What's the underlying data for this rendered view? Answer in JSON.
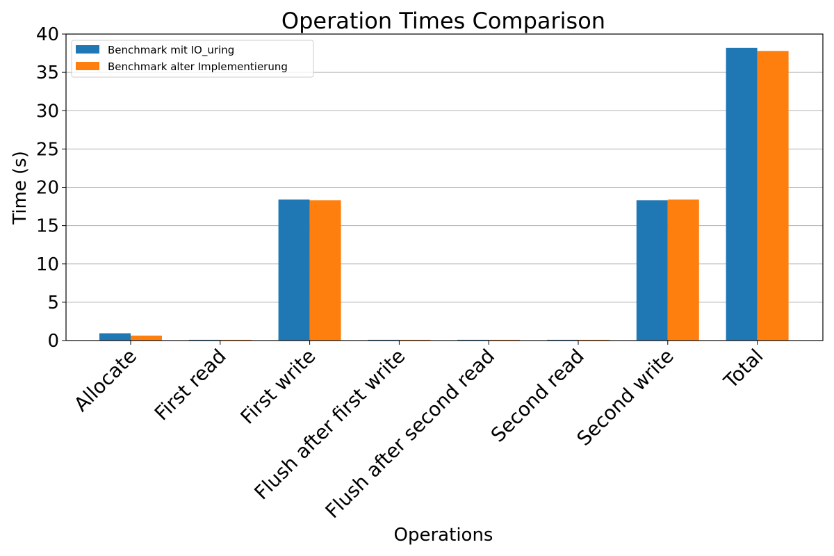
{
  "chart_data": {
    "type": "bar",
    "title": "Operation Times Comparison",
    "xlabel": "Operations",
    "ylabel": "Time (s)",
    "ylim": [
      0,
      40
    ],
    "yticks": [
      "0",
      "5",
      "10",
      "15",
      "20",
      "25",
      "30",
      "35",
      "40"
    ],
    "grid": "horizontal",
    "legend_position": "top-left",
    "categories": [
      "Allocate",
      "First read",
      "First write",
      "Flush after first write",
      "Flush after second read",
      "Second read",
      "Second write",
      "Total"
    ],
    "series": [
      {
        "name": "Benchmark mit IO_uring",
        "color": "#1f77b4",
        "values": [
          0.95,
          0.1,
          18.4,
          0.1,
          0.1,
          0.1,
          18.3,
          38.2
        ]
      },
      {
        "name": "Benchmark alter Implementierung",
        "color": "#ff7f0e",
        "values": [
          0.65,
          0.1,
          18.3,
          0.1,
          0.1,
          0.1,
          18.4,
          37.8
        ]
      }
    ]
  }
}
